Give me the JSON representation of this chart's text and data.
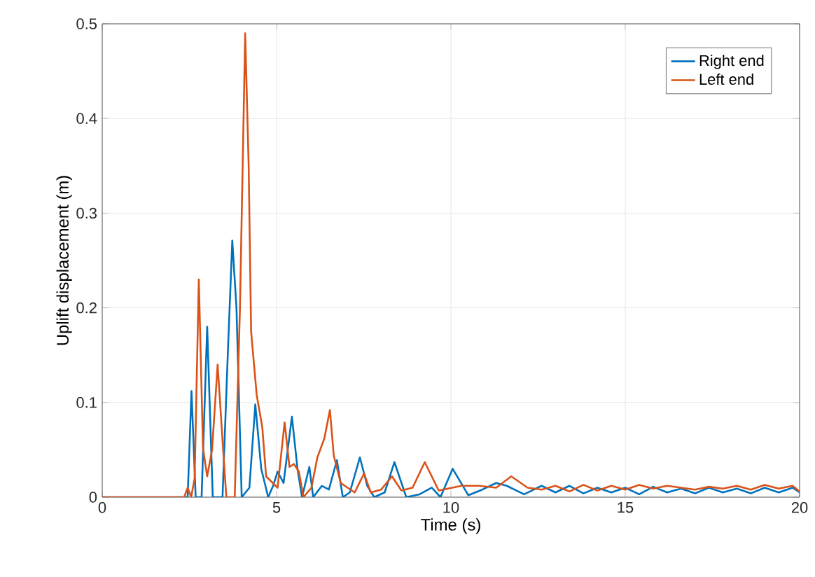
{
  "chart_data": {
    "type": "line",
    "xlabel": "Time (s)",
    "ylabel": "Uplift displacement (m)",
    "xlim": [
      0,
      20
    ],
    "ylim": [
      0,
      0.5
    ],
    "xticks": [
      0,
      5,
      10,
      15,
      20
    ],
    "yticks": [
      0,
      0.1,
      0.2,
      0.3,
      0.4,
      0.5
    ],
    "grid": true,
    "legend": "top right",
    "line_style": "solid",
    "marker": "none",
    "series": [
      {
        "name": "Right end",
        "color": "#0072bd",
        "x": [
          0,
          2.45,
          2.56,
          2.68,
          2.85,
          3.01,
          3.17,
          3.45,
          3.6,
          3.73,
          3.85,
          4.0,
          4.22,
          4.39,
          4.56,
          4.76,
          4.9,
          5.03,
          5.2,
          5.44,
          5.6,
          5.73,
          5.94,
          6.05,
          6.3,
          6.5,
          6.73,
          6.9,
          7.1,
          7.39,
          7.6,
          7.8,
          8.1,
          8.38,
          8.72,
          9.1,
          9.45,
          9.7,
          10.05,
          10.5,
          10.9,
          11.3,
          11.6,
          12.1,
          12.6,
          13.0,
          13.4,
          13.8,
          14.2,
          14.6,
          15.0,
          15.4,
          15.8,
          16.2,
          16.6,
          17.0,
          17.4,
          17.8,
          18.2,
          18.6,
          19.0,
          19.4,
          19.8,
          20
        ],
        "values": [
          0,
          0,
          0.112,
          0,
          0,
          0.18,
          0,
          0,
          0.15,
          0.271,
          0.2,
          0,
          0.01,
          0.098,
          0.03,
          0,
          0.012,
          0.027,
          0.015,
          0.085,
          0.03,
          0,
          0.032,
          0,
          0.012,
          0.008,
          0.039,
          0,
          0.005,
          0.042,
          0.012,
          0,
          0.005,
          0.037,
          0,
          0.003,
          0.01,
          0,
          0.03,
          0.002,
          0.008,
          0.015,
          0.012,
          0.003,
          0.012,
          0.005,
          0.012,
          0.004,
          0.01,
          0.005,
          0.01,
          0.003,
          0.011,
          0.005,
          0.009,
          0.004,
          0.01,
          0.005,
          0.009,
          0.004,
          0.01,
          0.005,
          0.01,
          0.005
        ]
      },
      {
        "name": "Left end",
        "color": "#d95319",
        "x": [
          0,
          2.35,
          2.45,
          2.55,
          2.65,
          2.77,
          2.89,
          3.01,
          3.15,
          3.31,
          3.45,
          3.56,
          3.8,
          3.95,
          4.1,
          4.2,
          4.27,
          4.43,
          4.59,
          4.7,
          5.03,
          5.23,
          5.37,
          5.5,
          5.64,
          5.77,
          6.0,
          6.17,
          6.37,
          6.53,
          6.64,
          6.84,
          7.24,
          7.51,
          7.7,
          8.0,
          8.31,
          8.58,
          8.9,
          9.25,
          9.65,
          10.3,
          10.8,
          11.3,
          11.73,
          12.2,
          12.6,
          13.0,
          13.4,
          13.8,
          14.2,
          14.6,
          15.0,
          15.4,
          15.8,
          16.2,
          16.6,
          17.0,
          17.4,
          17.8,
          18.2,
          18.6,
          19.0,
          19.4,
          19.8,
          20
        ],
        "values": [
          0,
          0,
          0.01,
          0,
          0.02,
          0.23,
          0.052,
          0.022,
          0.05,
          0.14,
          0.06,
          0,
          0,
          0.2,
          0.49,
          0.35,
          0.175,
          0.108,
          0.074,
          0.022,
          0.01,
          0.079,
          0.032,
          0.035,
          0.027,
          0,
          0.01,
          0.042,
          0.062,
          0.092,
          0.044,
          0.015,
          0.005,
          0.025,
          0.005,
          0.008,
          0.022,
          0.007,
          0.01,
          0.037,
          0.007,
          0.012,
          0.012,
          0.01,
          0.022,
          0.01,
          0.008,
          0.012,
          0.006,
          0.013,
          0.007,
          0.012,
          0.008,
          0.013,
          0.009,
          0.012,
          0.01,
          0.008,
          0.011,
          0.009,
          0.012,
          0.008,
          0.013,
          0.009,
          0.012,
          0.006
        ]
      }
    ]
  }
}
